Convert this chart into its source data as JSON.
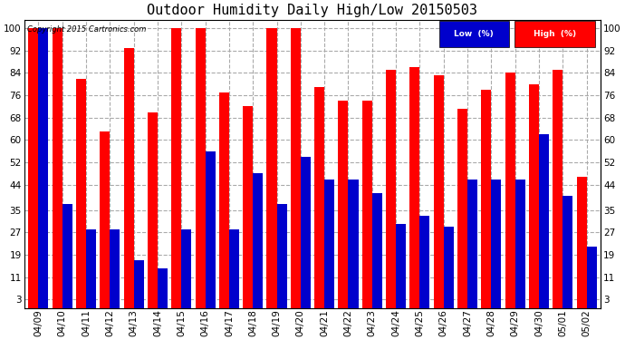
{
  "title": "Outdoor Humidity Daily High/Low 20150503",
  "copyright": "Copyright 2015 Cartronics.com",
  "dates": [
    "04/09",
    "04/10",
    "04/11",
    "04/12",
    "04/13",
    "04/14",
    "04/15",
    "04/16",
    "04/17",
    "04/18",
    "04/19",
    "04/20",
    "04/21",
    "04/22",
    "04/23",
    "04/24",
    "04/25",
    "04/26",
    "04/27",
    "04/28",
    "04/29",
    "04/30",
    "05/01",
    "05/02"
  ],
  "high": [
    100,
    100,
    82,
    63,
    93,
    70,
    100,
    100,
    77,
    72,
    100,
    100,
    79,
    74,
    74,
    85,
    86,
    83,
    71,
    78,
    84,
    80,
    85,
    47
  ],
  "low": [
    100,
    37,
    28,
    28,
    17,
    14,
    28,
    56,
    28,
    48,
    37,
    54,
    46,
    46,
    41,
    30,
    33,
    29,
    46,
    46,
    46,
    62,
    40,
    22
  ],
  "bar_color_high": "#ff0000",
  "bar_color_low": "#0000cc",
  "background_color": "#ffffff",
  "grid_color": "#aaaaaa",
  "title_fontsize": 11,
  "yticks": [
    3,
    11,
    19,
    27,
    35,
    44,
    52,
    60,
    68,
    76,
    84,
    92,
    100
  ],
  "ylim_min": 0,
  "ylim_max": 103,
  "legend_low_label": "Low  (%)",
  "legend_high_label": "High  (%)"
}
